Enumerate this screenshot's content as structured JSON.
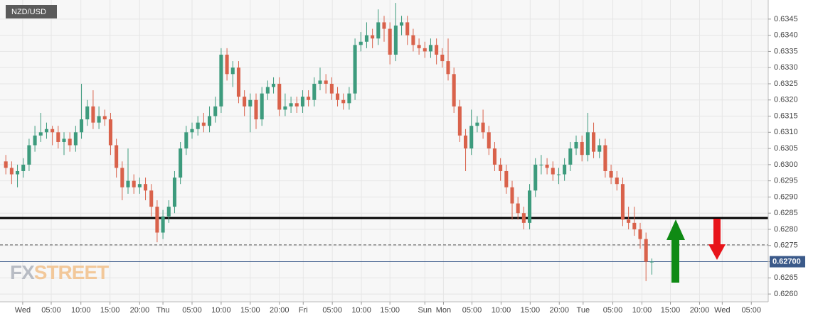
{
  "chart_data": {
    "type": "candlestick",
    "title": "NZD/USD",
    "watermark": [
      "FX",
      "STREET"
    ],
    "up_color": "#3d9b7d",
    "down_color": "#d9624b",
    "grid": true,
    "xlim": [
      -1,
      131
    ],
    "ylim": [
      0.62576,
      0.63509
    ],
    "xticks": [
      {
        "value": 2.9,
        "label": "Wed"
      },
      {
        "value": 7.8,
        "label": "05:00"
      },
      {
        "value": 12.9,
        "label": "10:00"
      },
      {
        "value": 17.9,
        "label": "15:00"
      },
      {
        "value": 23.0,
        "label": "20:00"
      },
      {
        "value": 27.0,
        "label": "Thu"
      },
      {
        "value": 32.0,
        "label": "05:00"
      },
      {
        "value": 37.0,
        "label": "10:00"
      },
      {
        "value": 42.0,
        "label": "15:00"
      },
      {
        "value": 47.0,
        "label": "20:00"
      },
      {
        "value": 51.1,
        "label": "Fri"
      },
      {
        "value": 56.1,
        "label": "05:00"
      },
      {
        "value": 61.1,
        "label": "10:00"
      },
      {
        "value": 66.0,
        "label": "15:00"
      },
      {
        "value": 72.0,
        "label": "Sun"
      },
      {
        "value": 75.2,
        "label": "Mon"
      },
      {
        "value": 80.1,
        "label": "05:00"
      },
      {
        "value": 85.1,
        "label": "10:00"
      },
      {
        "value": 90.1,
        "label": "15:00"
      },
      {
        "value": 95.1,
        "label": "20:00"
      },
      {
        "value": 99.2,
        "label": "Tue"
      },
      {
        "value": 104.3,
        "label": "05:00"
      },
      {
        "value": 109.3,
        "label": "10:00"
      },
      {
        "value": 114.2,
        "label": "15:00"
      },
      {
        "value": 119.2,
        "label": "20:00"
      },
      {
        "value": 123.1,
        "label": "Wed"
      },
      {
        "value": 128.1,
        "label": "05:00"
      }
    ],
    "yticks": [
      {
        "value": 0.626,
        "label": "0.6260"
      },
      0.6265,
      {
        "value": 0.627,
        "label": "0.6270"
      },
      0.6275,
      {
        "value": 0.628,
        "label": "0.6280"
      },
      0.6285,
      {
        "value": 0.629,
        "label": "0.6290"
      },
      0.6295,
      {
        "value": 0.63,
        "label": "0.6300"
      },
      0.6305,
      {
        "value": 0.631,
        "label": "0.6310"
      },
      0.6315,
      {
        "value": 0.632,
        "label": "0.6320"
      },
      0.6325,
      {
        "value": 0.633,
        "label": "0.6330"
      },
      0.6335,
      {
        "value": 0.634,
        "label": "0.6340"
      },
      0.6345
    ],
    "levels": [
      {
        "value": 0.62835,
        "color": "#000000",
        "style": "solid"
      },
      {
        "value": 0.62752,
        "color": "#555555",
        "style": "dashed"
      }
    ],
    "last_price": {
      "value": 0.627,
      "label": "0.62700",
      "color": "#3b5a8a"
    },
    "x": [
      0,
      1,
      2,
      3,
      4,
      5,
      6,
      7,
      8,
      9,
      10,
      11,
      12,
      13,
      14,
      15,
      16,
      17,
      18,
      19,
      20,
      21,
      22,
      23,
      24,
      25,
      26,
      27,
      28,
      29,
      30,
      31,
      32,
      33,
      34,
      35,
      36,
      37,
      38,
      39,
      40,
      41,
      42,
      43,
      44,
      45,
      46,
      47,
      48,
      49,
      50,
      51,
      52,
      53,
      54,
      55,
      56,
      57,
      58,
      59,
      60,
      61,
      62,
      63,
      64,
      65,
      66,
      67,
      68,
      69,
      70,
      71,
      72,
      73,
      74,
      75,
      76,
      77,
      78,
      79,
      80,
      81,
      82,
      83,
      84,
      85,
      86,
      87,
      88,
      89,
      90,
      91,
      92,
      93,
      94,
      95,
      96,
      97,
      98,
      99,
      100,
      101,
      102,
      103,
      104,
      105,
      106,
      107,
      108,
      109,
      110,
      111
    ],
    "open": [
      0.6301,
      0.6299,
      0.6297,
      0.6298,
      0.63,
      0.6306,
      0.6309,
      0.631,
      0.6311,
      0.631,
      0.6307,
      0.6308,
      0.6306,
      0.631,
      0.6314,
      0.6318,
      0.6313,
      0.6315,
      0.6314,
      0.6306,
      0.6299,
      0.6293,
      0.6295,
      0.6293,
      0.6294,
      0.6292,
      0.6287,
      0.6279,
      0.6284,
      0.6287,
      0.6296,
      0.6305,
      0.631,
      0.6311,
      0.6313,
      0.6312,
      0.6315,
      0.6318,
      0.6334,
      0.6328,
      0.633,
      0.6321,
      0.6318,
      0.632,
      0.6314,
      0.6322,
      0.6324,
      0.6325,
      0.6317,
      0.6318,
      0.6319,
      0.6318,
      0.6321,
      0.632,
      0.6325,
      0.6326,
      0.6325,
      0.6322,
      0.632,
      0.6319,
      0.6322,
      0.6337,
      0.6338,
      0.634,
      0.6339,
      0.6344,
      0.6342,
      0.6334,
      0.6343,
      0.6344,
      0.634,
      0.6337,
      0.6336,
      0.6335,
      0.6337,
      0.6334,
      0.6332,
      0.6328,
      0.6318,
      0.6309,
      0.6305,
      0.6312,
      0.6313,
      0.631,
      0.6305,
      0.63,
      0.6298,
      0.6293,
      0.6288,
      0.6285,
      0.6282,
      0.6292,
      0.63,
      0.63,
      0.6299,
      0.6297,
      0.6297,
      0.63,
      0.6305,
      0.6307,
      0.6303,
      0.631,
      0.6304,
      0.6306,
      0.6298,
      0.6296,
      0.6294,
      0.6283,
      0.6282,
      0.628,
      0.6277,
      0.627
    ],
    "high": [
      0.6303,
      0.6301,
      0.63,
      0.6302,
      0.6308,
      0.6312,
      0.6316,
      0.6313,
      0.6312,
      0.6312,
      0.631,
      0.631,
      0.6312,
      0.6325,
      0.632,
      0.6323,
      0.6318,
      0.6317,
      0.6316,
      0.6308,
      0.6301,
      0.6305,
      0.6297,
      0.6296,
      0.6296,
      0.6294,
      0.6289,
      0.6286,
      0.6289,
      0.6298,
      0.6307,
      0.6312,
      0.6313,
      0.6315,
      0.6316,
      0.6318,
      0.6321,
      0.6336,
      0.6336,
      0.6332,
      0.6332,
      0.6323,
      0.6322,
      0.6322,
      0.6324,
      0.6326,
      0.6327,
      0.6327,
      0.6322,
      0.6321,
      0.6321,
      0.6323,
      0.6323,
      0.6327,
      0.633,
      0.6328,
      0.6327,
      0.6324,
      0.6322,
      0.6324,
      0.6339,
      0.6341,
      0.6344,
      0.6342,
      0.6348,
      0.6346,
      0.6344,
      0.635,
      0.6346,
      0.6346,
      0.6342,
      0.6339,
      0.6338,
      0.6339,
      0.6339,
      0.6336,
      0.6339,
      0.633,
      0.632,
      0.6311,
      0.6317,
      0.6315,
      0.6317,
      0.6312,
      0.6307,
      0.6302,
      0.63,
      0.6295,
      0.629,
      0.6287,
      0.6294,
      0.6302,
      0.6303,
      0.6302,
      0.6301,
      0.6299,
      0.6302,
      0.6307,
      0.6309,
      0.6309,
      0.6316,
      0.6313,
      0.6308,
      0.6308,
      0.63,
      0.6298,
      0.6296,
      0.6287,
      0.6287,
      0.6282,
      0.6279,
      0.6271
    ],
    "low": [
      0.6297,
      0.6294,
      0.6293,
      0.6296,
      0.6298,
      0.6304,
      0.6307,
      0.6308,
      0.6306,
      0.6305,
      0.6303,
      0.6304,
      0.6304,
      0.6308,
      0.6312,
      0.6311,
      0.6311,
      0.6312,
      0.6303,
      0.6296,
      0.6289,
      0.6291,
      0.6291,
      0.6291,
      0.6289,
      0.6284,
      0.6276,
      0.6277,
      0.6282,
      0.6285,
      0.6294,
      0.6303,
      0.6308,
      0.6309,
      0.631,
      0.631,
      0.6313,
      0.6316,
      0.6326,
      0.6324,
      0.6319,
      0.6315,
      0.631,
      0.6311,
      0.6312,
      0.632,
      0.6322,
      0.6315,
      0.6315,
      0.6316,
      0.6316,
      0.6316,
      0.6318,
      0.6318,
      0.6323,
      0.6322,
      0.632,
      0.6318,
      0.6317,
      0.6317,
      0.632,
      0.6335,
      0.6336,
      0.6336,
      0.6337,
      0.6338,
      0.6331,
      0.6332,
      0.634,
      0.6337,
      0.6335,
      0.6334,
      0.6333,
      0.6333,
      0.6331,
      0.633,
      0.6326,
      0.6316,
      0.6307,
      0.6298,
      0.6303,
      0.631,
      0.6308,
      0.6303,
      0.6298,
      0.6295,
      0.6291,
      0.6283,
      0.6283,
      0.628,
      0.628,
      0.629,
      0.6297,
      0.6297,
      0.6295,
      0.6294,
      0.6295,
      0.6298,
      0.6303,
      0.6301,
      0.6301,
      0.6302,
      0.6302,
      0.6296,
      0.6294,
      0.6292,
      0.6281,
      0.628,
      0.6278,
      0.6274,
      0.6264,
      0.6266
    ],
    "close": [
      0.6299,
      0.6297,
      0.6298,
      0.63,
      0.6306,
      0.6309,
      0.631,
      0.6311,
      0.631,
      0.6307,
      0.6308,
      0.6306,
      0.631,
      0.6314,
      0.6318,
      0.6313,
      0.6315,
      0.6314,
      0.6306,
      0.6299,
      0.6293,
      0.6295,
      0.6293,
      0.6294,
      0.6292,
      0.6287,
      0.6279,
      0.6284,
      0.6287,
      0.6296,
      0.6305,
      0.631,
      0.6311,
      0.6313,
      0.6312,
      0.6315,
      0.6318,
      0.6334,
      0.6328,
      0.633,
      0.6321,
      0.6318,
      0.632,
      0.6314,
      0.6322,
      0.6324,
      0.6325,
      0.6317,
      0.6318,
      0.6319,
      0.6318,
      0.6321,
      0.632,
      0.6325,
      0.6326,
      0.6325,
      0.6322,
      0.632,
      0.6319,
      0.6322,
      0.6337,
      0.6338,
      0.634,
      0.6339,
      0.6344,
      0.6342,
      0.6334,
      0.6343,
      0.6344,
      0.634,
      0.6337,
      0.6336,
      0.6335,
      0.6337,
      0.6334,
      0.6332,
      0.6328,
      0.6318,
      0.6309,
      0.6305,
      0.6312,
      0.6313,
      0.631,
      0.6305,
      0.63,
      0.6298,
      0.6293,
      0.6288,
      0.6285,
      0.6282,
      0.6292,
      0.63,
      0.63,
      0.6299,
      0.6297,
      0.6297,
      0.63,
      0.6305,
      0.6307,
      0.6303,
      0.631,
      0.6304,
      0.6306,
      0.6298,
      0.6296,
      0.6294,
      0.6283,
      0.6282,
      0.628,
      0.6277,
      0.627,
      0.627
    ]
  }
}
